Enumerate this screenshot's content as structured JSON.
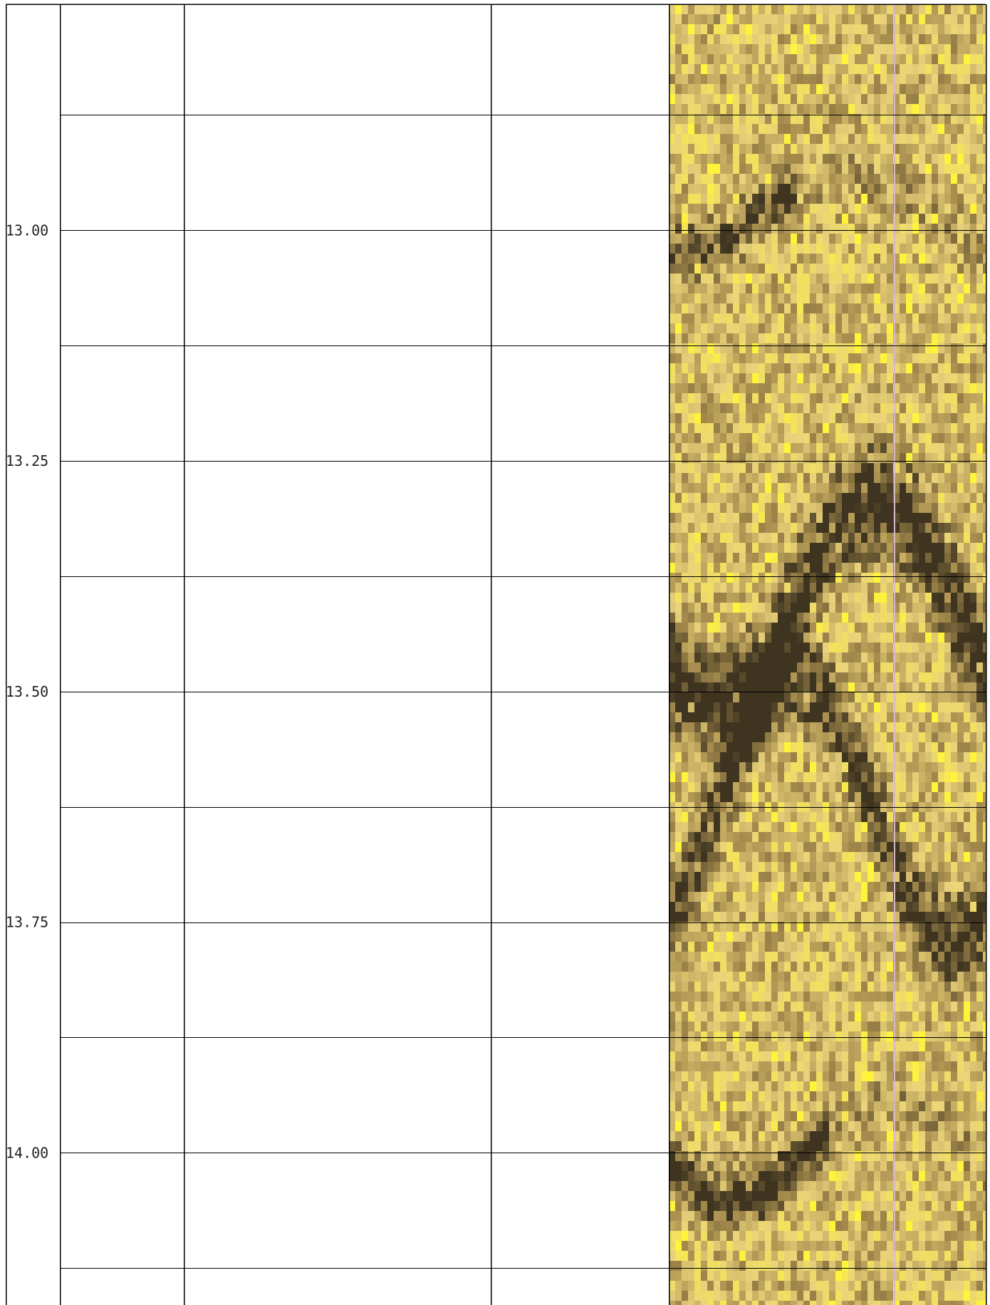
{
  "chart_data": {
    "type": "image-log",
    "depth_axis": {
      "range": [
        12.755,
        14.165
      ],
      "major_ticks": [
        {
          "value": 13.0,
          "label": "13.00"
        },
        {
          "value": 13.25,
          "label": "13.25"
        },
        {
          "value": 13.5,
          "label": "13.50"
        },
        {
          "value": 13.75,
          "label": "13.75"
        },
        {
          "value": 14.0,
          "label": "14.00"
        }
      ],
      "gridline_interval": 0.125,
      "grid": true
    },
    "tracks": [
      {
        "id": "track-1",
        "content": "empty"
      },
      {
        "id": "track-2",
        "content": "empty"
      },
      {
        "id": "track-3",
        "content": "empty"
      },
      {
        "id": "track-4",
        "content": "image",
        "palette": "yellow-brown"
      }
    ]
  },
  "colors": {
    "grid": "#000000",
    "image_dark": "#3e3420",
    "image_mid": "#a88e4e",
    "image_light": "#e9d27a",
    "image_bright": "#fff43a",
    "image_marker_line": "#d4b8c8"
  }
}
